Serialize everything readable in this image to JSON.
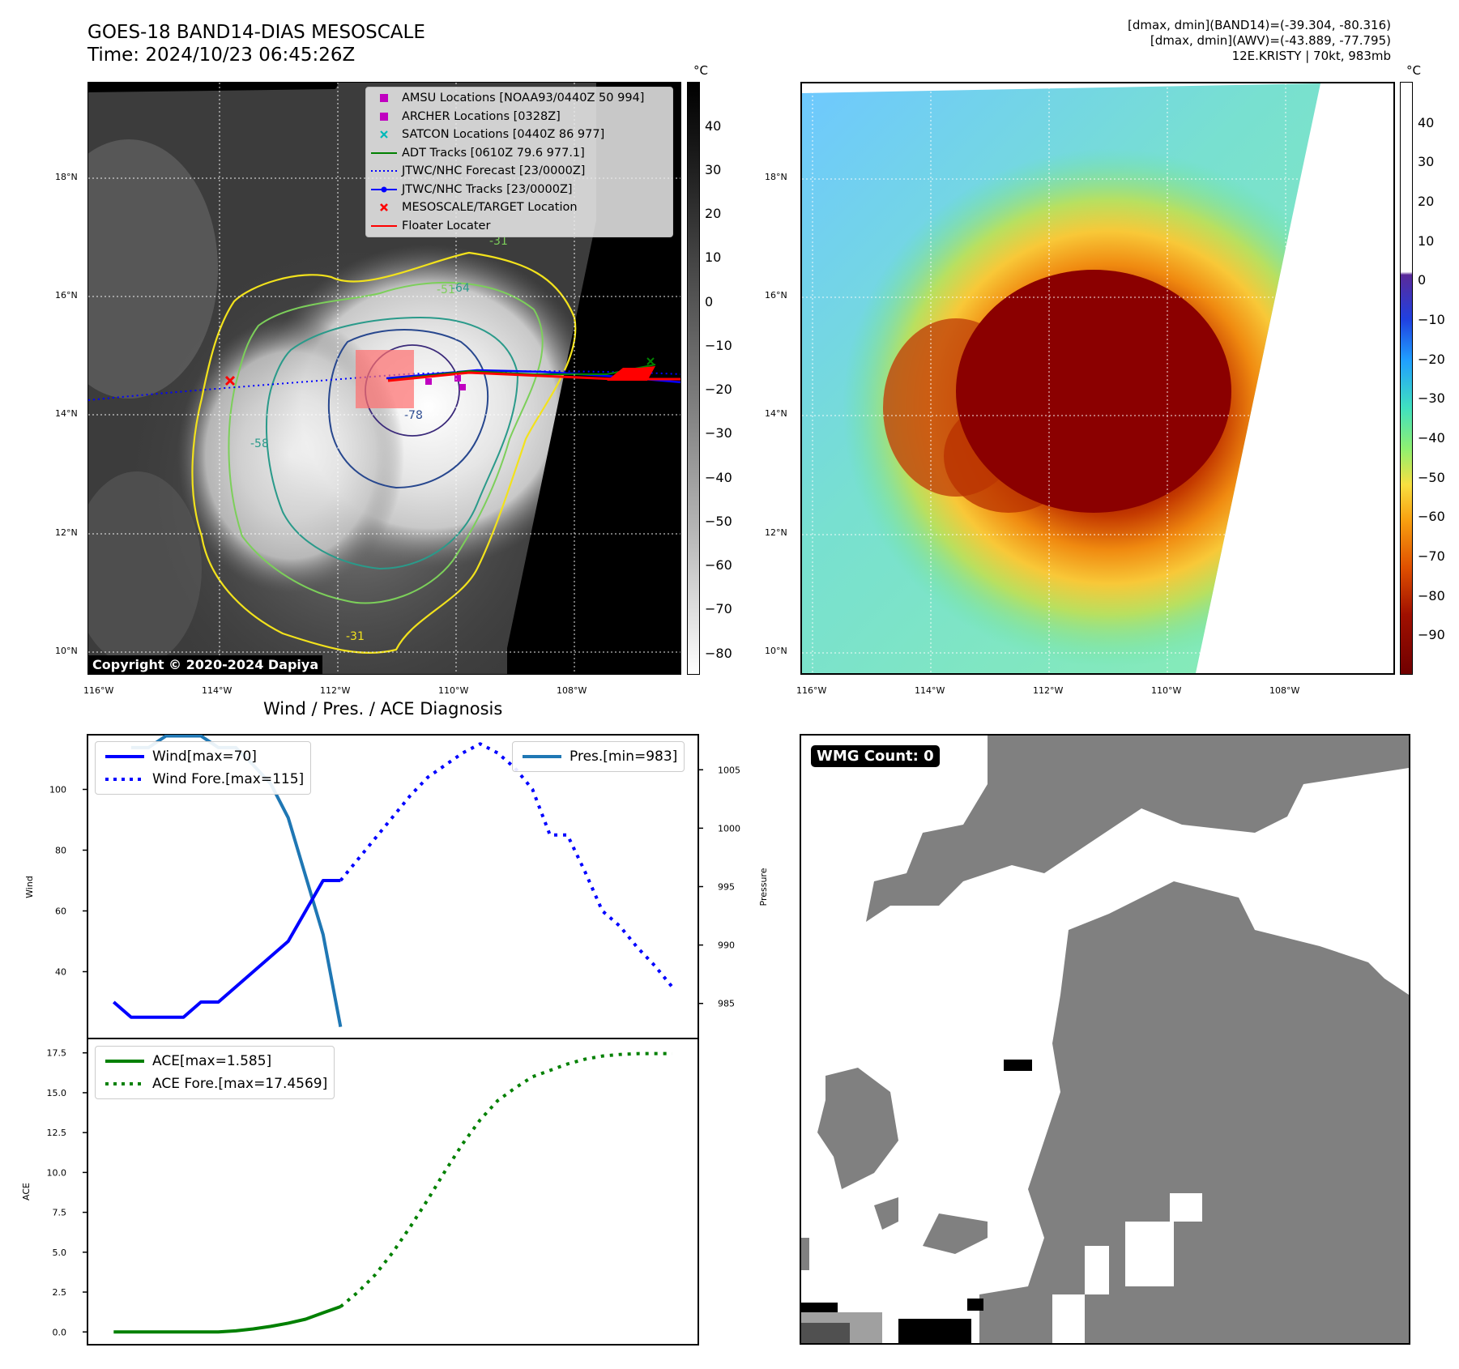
{
  "header": {
    "title_line1": "GOES-18 BAND14-DIAS MESOSCALE",
    "title_line2": "Time: 2024/10/23 06:45:26Z",
    "info_line1": "[dmax, dmin](BAND14)=(-39.304, -80.316)",
    "info_line2": "[dmax, dmin](AWV)=(-43.889, -77.795)",
    "info_line3": "12E.KRISTY | 70kt, 983mb"
  },
  "maps": {
    "lat_labels": [
      "18°N",
      "16°N",
      "14°N",
      "12°N",
      "10°N"
    ],
    "lon_labels": [
      "116°W",
      "114°W",
      "112°W",
      "110°W",
      "108°W"
    ],
    "copyright": "Copyright © 2020-2024 Dapiya",
    "contour_labels": [
      "-31",
      "-51",
      "-64",
      "-78",
      "-31",
      "-58"
    ],
    "colorbar_unit": "°C",
    "left_colorbar_ticks": [
      "40",
      "30",
      "20",
      "10",
      "0",
      "−10",
      "−20",
      "−30",
      "−40",
      "−50",
      "−60",
      "−70",
      "−80"
    ],
    "right_colorbar_ticks": [
      "40",
      "30",
      "20",
      "10",
      "0",
      "−10",
      "−20",
      "−30",
      "−40",
      "−50",
      "−60",
      "−70",
      "−80",
      "−90"
    ],
    "legend": [
      {
        "label": "AMSU Locations [NOAA93/0440Z 50 994]",
        "symbol": "magenta-square",
        "color": "#c000c0"
      },
      {
        "label": "ARCHER Locations [0328Z]",
        "symbol": "magenta-square",
        "color": "#c000c0"
      },
      {
        "label": "SATCON Locations [0440Z 86 977]",
        "symbol": "cyan-x",
        "color": "#00b8b8"
      },
      {
        "label": "ADT Tracks [0610Z 79.6 977.1]",
        "symbol": "green-line",
        "color": "#008000"
      },
      {
        "label": "JTWC/NHC Forecast [23/0000Z]",
        "symbol": "blue-dotted-line",
        "color": "#0000ff"
      },
      {
        "label": "JTWC/NHC Tracks [23/0000Z]",
        "symbol": "blue-line-dot",
        "color": "#0000ff"
      },
      {
        "label": "MESOSCALE/TARGET Location",
        "symbol": "red-x",
        "color": "#ff0000"
      },
      {
        "label": "Floater Locater",
        "symbol": "red-line",
        "color": "#ff0000"
      }
    ]
  },
  "diagnosis": {
    "title": "Wind / Pres. / ACE Diagnosis",
    "wmg_label": "WMG Count: 0"
  },
  "chart_data": [
    {
      "type": "line",
      "title": "Wind / Pres. / ACE Diagnosis",
      "ylabel": "Wind",
      "ylabel_right": "Pressure",
      "x": [
        0,
        1,
        2,
        3,
        4,
        5,
        6,
        7,
        8,
        9,
        10,
        11,
        12,
        13,
        14,
        15,
        16,
        17,
        18,
        19,
        20,
        21,
        22,
        23,
        24,
        25,
        26,
        27,
        28,
        29,
        30,
        31,
        32
      ],
      "xlim": [
        -1.5,
        33.5
      ],
      "ylim": [
        18,
        118
      ],
      "ylim_right": [
        982,
        1008
      ],
      "yticks": [
        40,
        60,
        80,
        100
      ],
      "yticks_right": [
        985,
        990,
        995,
        1000,
        1005
      ],
      "series": [
        {
          "name": "Wind[max=70]",
          "axis": "left",
          "style": "solid",
          "color": "#0000ff",
          "x": [
            0,
            1,
            2,
            3,
            4,
            5,
            6,
            7,
            8,
            9,
            10,
            11,
            12,
            13
          ],
          "values": [
            30,
            25,
            25,
            25,
            25,
            30,
            30,
            35,
            40,
            45,
            50,
            60,
            70,
            70
          ]
        },
        {
          "name": "Wind Fore.[max=115]",
          "axis": "left",
          "style": "dotted",
          "color": "#0000ff",
          "x": [
            13,
            14,
            15,
            16,
            17,
            18,
            19,
            20,
            21,
            22,
            23,
            24,
            25,
            26,
            27,
            28,
            29,
            30,
            31,
            32
          ],
          "values": [
            70,
            77,
            84,
            91,
            98,
            104,
            108,
            112,
            115,
            112,
            107,
            100,
            85,
            85,
            73,
            60,
            55,
            48,
            42,
            35
          ]
        },
        {
          "name": "Pres.[min=983]",
          "axis": "right",
          "style": "solid",
          "color": "#1f77b4",
          "x": [
            1,
            2,
            3,
            4,
            5,
            6,
            7,
            8,
            9,
            10,
            11,
            12,
            13
          ],
          "values": [
            1006.9,
            1006.9,
            1007.9,
            1007.9,
            1007.9,
            1006.9,
            1006.9,
            1005.4,
            1003.8,
            1000.9,
            995.9,
            990.9,
            983
          ]
        }
      ],
      "legend_left": [
        "Wind[max=70]",
        "Wind Fore.[max=115]"
      ],
      "legend_right": [
        "Pres.[min=983]"
      ]
    },
    {
      "type": "line",
      "ylabel": "ACE",
      "x": [
        0,
        1,
        2,
        3,
        4,
        5,
        6,
        7,
        8,
        9,
        10,
        11,
        12,
        13,
        14,
        15,
        16,
        17,
        18,
        19,
        20,
        21,
        22,
        23,
        24,
        25,
        26,
        27,
        28,
        29,
        30,
        31,
        32
      ],
      "xlim": [
        -1.5,
        33.5
      ],
      "ylim": [
        -0.8,
        18.4
      ],
      "yticks": [
        0.0,
        2.5,
        5.0,
        7.5,
        10.0,
        12.5,
        15.0,
        17.5
      ],
      "ytick_labels": [
        "0.0",
        "2.5",
        "5.0",
        "7.5",
        "10.0",
        "12.5",
        "15.0",
        "17.5"
      ],
      "series": [
        {
          "name": "ACE[max=1.585]",
          "style": "solid",
          "color": "#008000",
          "x": [
            0,
            1,
            2,
            3,
            4,
            5,
            6,
            7,
            8,
            9,
            10,
            11,
            12,
            13
          ],
          "values": [
            0,
            0,
            0,
            0,
            0,
            0,
            0,
            0.07,
            0.19,
            0.35,
            0.55,
            0.8,
            1.2,
            1.585
          ]
        },
        {
          "name": "ACE Fore.[max=17.4569]",
          "style": "dotted",
          "color": "#008000",
          "x": [
            13,
            14,
            15,
            16,
            17,
            18,
            19,
            20,
            21,
            22,
            23,
            24,
            25,
            26,
            27,
            28,
            29,
            30,
            31,
            32
          ],
          "values": [
            1.585,
            2.5,
            3.6,
            5.0,
            6.6,
            8.3,
            10.1,
            11.8,
            13.3,
            14.5,
            15.3,
            16.0,
            16.4,
            16.8,
            17.1,
            17.3,
            17.4,
            17.45,
            17.4569,
            17.4569
          ]
        }
      ]
    }
  ]
}
